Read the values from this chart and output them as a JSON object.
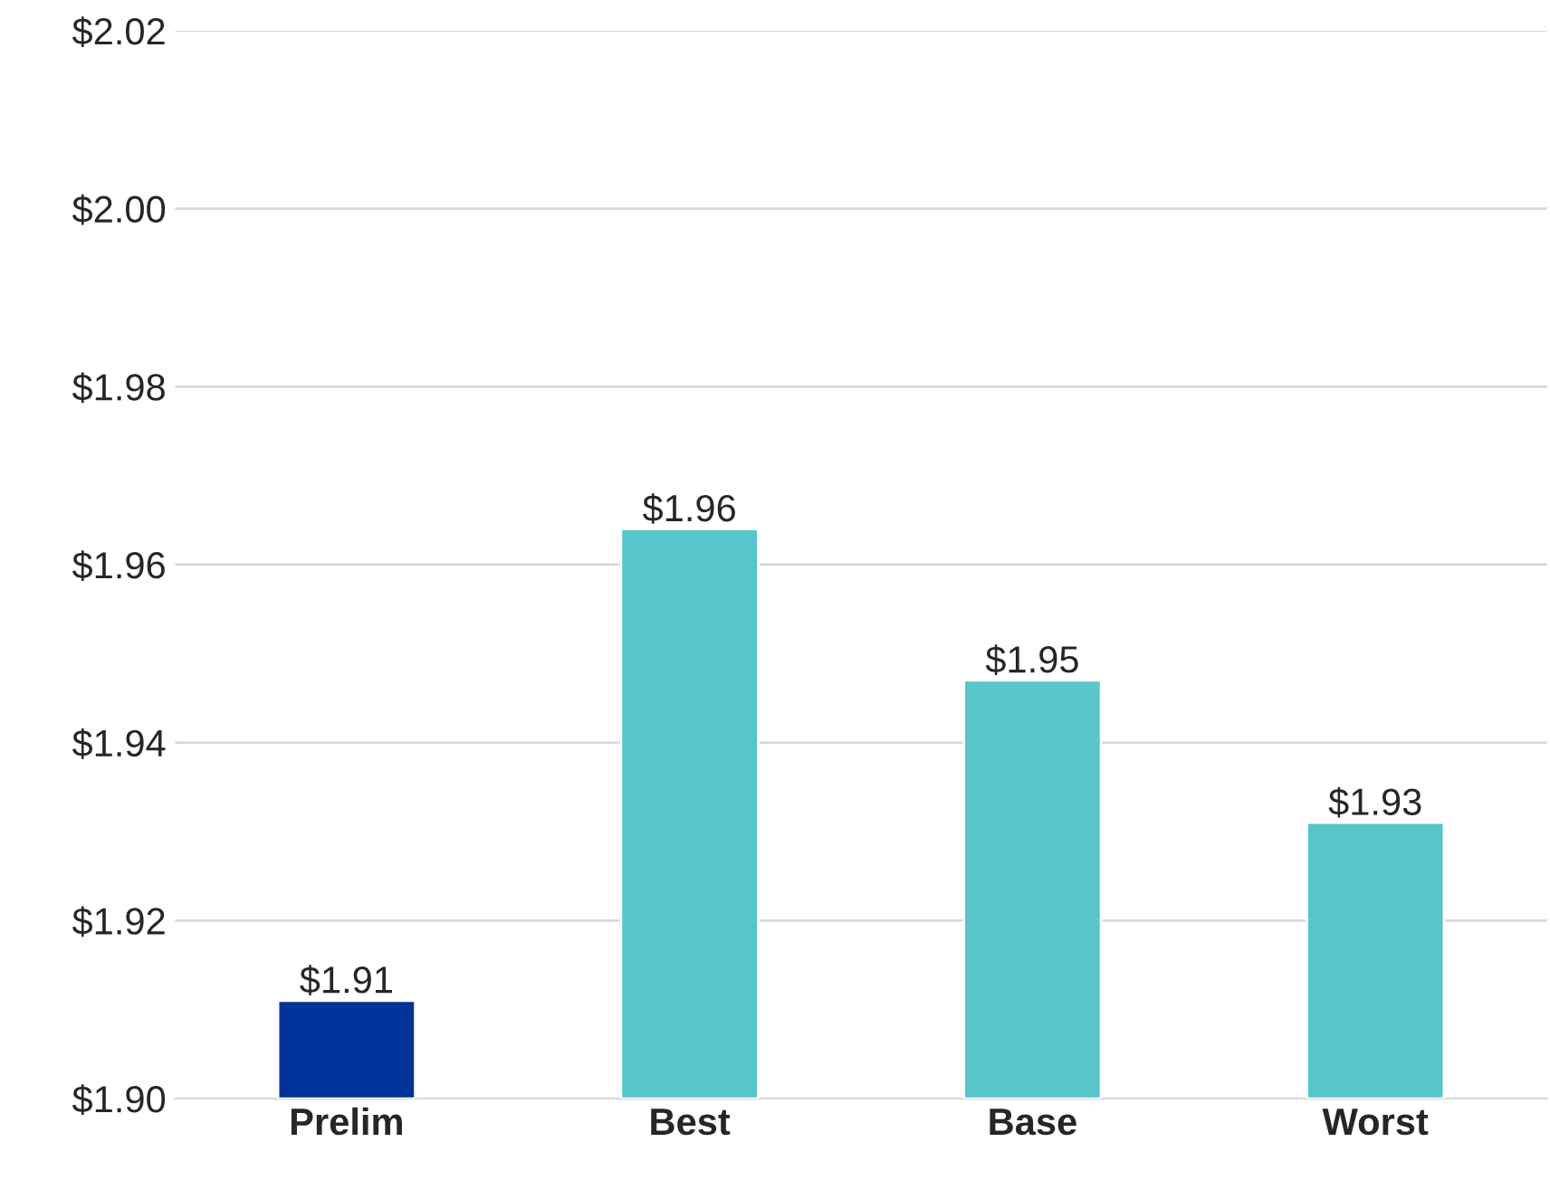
{
  "chart_data": {
    "type": "bar",
    "categories": [
      "Prelim",
      "Best",
      "Base",
      "Worst"
    ],
    "values": [
      1.911,
      1.964,
      1.947,
      1.931
    ],
    "colors": [
      "#003399",
      "#56c6cc",
      "#56c6cc",
      "#56c6cc"
    ],
    "value_labels": [
      "$1.91",
      "$1.96",
      "$1.95",
      "$1.93"
    ],
    "ylim": [
      1.9,
      2.02
    ],
    "yticks": [
      {
        "value": 1.9,
        "label": "$1.90"
      },
      {
        "value": 1.92,
        "label": "$1.92"
      },
      {
        "value": 1.94,
        "label": "$1.94"
      },
      {
        "value": 1.96,
        "label": "$1.96"
      },
      {
        "value": 1.98,
        "label": "$1.98"
      },
      {
        "value": 2.0,
        "label": "$2.00"
      },
      {
        "value": 2.02,
        "label": "$2.02"
      }
    ],
    "grid": "y"
  }
}
